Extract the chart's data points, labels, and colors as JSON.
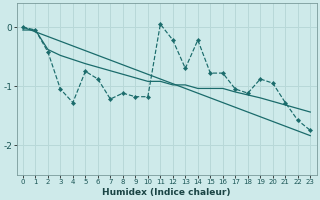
{
  "xlabel": "Humidex (Indice chaleur)",
  "ylabel": "",
  "background_color": "#ceeaea",
  "grid_color": "#b8d8d8",
  "line_color": "#1a6b6b",
  "xlim": [
    -0.5,
    23.5
  ],
  "ylim": [
    -2.5,
    0.4
  ],
  "yticks": [
    0,
    -1,
    -2
  ],
  "xtick_labels": [
    "0",
    "1",
    "2",
    "3",
    "4",
    "5",
    "6",
    "7",
    "8",
    "9",
    "10",
    "11",
    "12",
    "13",
    "14",
    "15",
    "16",
    "17",
    "18",
    "19",
    "20",
    "21",
    "22",
    "23"
  ],
  "main_y": [
    0.0,
    -0.05,
    -0.42,
    -1.05,
    -1.28,
    -0.75,
    -0.88,
    -1.22,
    -1.12,
    -1.18,
    -1.18,
    0.05,
    -0.22,
    -0.7,
    -0.22,
    -0.78,
    -0.78,
    -1.05,
    -1.12,
    -0.88,
    -0.95,
    -1.28,
    -1.58,
    -1.75
  ],
  "trend1_y": [
    -0.05,
    -0.05,
    -0.38,
    -0.48,
    -0.55,
    -0.62,
    -0.68,
    -0.74,
    -0.8,
    -0.86,
    -0.92,
    -0.92,
    -0.98,
    -0.98,
    -1.04,
    -1.04,
    -1.04,
    -1.1,
    -1.15,
    -1.2,
    -1.26,
    -1.32,
    -1.38,
    -1.44
  ],
  "trend2_y": [
    0.0,
    -0.08,
    -0.16,
    -0.24,
    -0.32,
    -0.4,
    -0.48,
    -0.56,
    -0.64,
    -0.72,
    -0.8,
    -0.88,
    -0.96,
    -1.04,
    -1.12,
    -1.2,
    -1.28,
    -1.36,
    -1.44,
    -1.52,
    -1.6,
    -1.68,
    -1.76,
    -1.84
  ]
}
